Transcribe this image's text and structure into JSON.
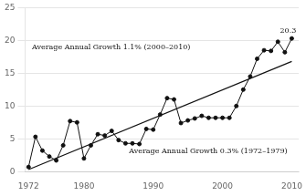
{
  "chart_data": {
    "type": "line",
    "x": [
      1972,
      1973,
      1974,
      1975,
      1976,
      1977,
      1978,
      1979,
      1980,
      1981,
      1982,
      1983,
      1984,
      1985,
      1986,
      1987,
      1988,
      1989,
      1990,
      1991,
      1992,
      1993,
      1994,
      1995,
      1996,
      1997,
      1998,
      1999,
      2000,
      2001,
      2002,
      2003,
      2004,
      2005,
      2006,
      2007,
      2008,
      2009,
      2010
    ],
    "values": [
      0.7,
      5.3,
      3.2,
      2.3,
      1.7,
      4.0,
      7.7,
      7.5,
      2.0,
      4.0,
      5.7,
      5.5,
      6.2,
      4.8,
      4.3,
      4.3,
      4.2,
      6.5,
      6.4,
      8.7,
      11.2,
      11.0,
      7.4,
      7.8,
      8.1,
      8.5,
      8.2,
      8.2,
      8.2,
      8.2,
      10.0,
      12.5,
      14.5,
      17.2,
      18.5,
      18.4,
      19.8,
      18.2,
      20.3
    ],
    "color": "#111111",
    "marker": "circle",
    "trend_line": {
      "x": [
        1972,
        2010
      ],
      "values": [
        0.3,
        16.8
      ]
    },
    "annotations": [
      {
        "text": "Average Annual Growth 1.1% (2000–2010)",
        "x": 1972.5,
        "y": 18.7
      },
      {
        "text": "Average Annual Growth 0.3% (1972–1979)",
        "x": 1986.5,
        "y": 2.8
      },
      {
        "text": "20.3",
        "x": 2008.3,
        "y": 21.2
      }
    ],
    "xlim": [
      1971.5,
      2011
    ],
    "xticks": [
      1972,
      1980,
      1990,
      2000,
      2010
    ],
    "ylim": [
      0,
      25
    ],
    "yticks": [
      0,
      5,
      10,
      15,
      20,
      25
    ],
    "grid": "y"
  }
}
